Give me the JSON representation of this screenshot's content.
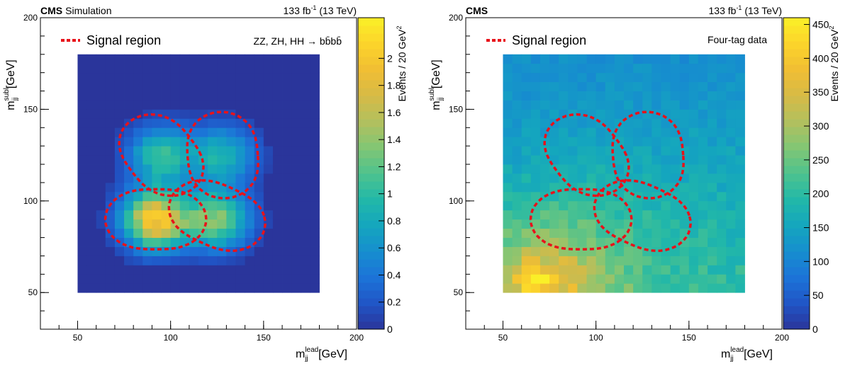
{
  "chart_data": [
    {
      "type": "heatmap",
      "label_left": "CMS",
      "label_left_extra": "Simulation",
      "lumi_label": "133 fb",
      "lumi_sup": "-1",
      "lumi_energy": " (13 TeV)",
      "legend_label": "Signal region",
      "process_label": "ZZ, ZH, HH → bb̄bb̄",
      "xlabel": "m",
      "xlabel_sub": "jj",
      "xlabel_sup": "lead",
      "xlabel_unit": " [GeV]",
      "ylabel": "m",
      "ylabel_sub": "jj",
      "ylabel_sup": "subl",
      "ylabel_unit": " [GeV]",
      "zlabel": "Events / 20 GeV",
      "zlabel_sup": "2",
      "xlim": [
        30,
        200
      ],
      "ylim": [
        30,
        200
      ],
      "zlim": [
        0,
        2.3
      ],
      "x_ticks": [
        "50",
        "100",
        "150",
        "200"
      ],
      "y_ticks": [
        "50",
        "100",
        "150",
        "200"
      ],
      "z_ticks": [
        "0",
        "0.2",
        "0.4",
        "0.6",
        "0.8",
        "1",
        "1.2",
        "1.4",
        "1.6",
        "1.8",
        "2"
      ],
      "bin_range": [
        50,
        180
      ],
      "bin_width": 5,
      "signal_peaks": [
        {
          "x": 92,
          "y": 90,
          "amp": 2.0
        },
        {
          "x": 125,
          "y": 90,
          "amp": 1.35
        },
        {
          "x": 95,
          "y": 125,
          "amp": 1.05
        },
        {
          "x": 128,
          "y": 125,
          "amp": 0.9
        }
      ],
      "signal_regions": [
        {
          "x": 92,
          "y": 90
        },
        {
          "x": 125,
          "y": 92
        },
        {
          "x": 95,
          "y": 125
        },
        {
          "x": 128,
          "y": 125
        }
      ]
    },
    {
      "type": "heatmap",
      "label_left": "CMS",
      "label_left_extra": "",
      "lumi_label": "133 fb",
      "lumi_sup": "-1",
      "lumi_energy": " (13 TeV)",
      "legend_label": "Signal region",
      "process_label": "Four-tag data",
      "xlabel": "m",
      "xlabel_sub": "jj",
      "xlabel_sup": "lead",
      "xlabel_unit": " [GeV]",
      "ylabel": "m",
      "ylabel_sub": "jj",
      "ylabel_sup": "subl",
      "ylabel_unit": " [GeV]",
      "zlabel": "Events / 20 GeV",
      "zlabel_sup": "2",
      "xlim": [
        30,
        200
      ],
      "ylim": [
        30,
        200
      ],
      "zlim": [
        0,
        460
      ],
      "x_ticks": [
        "50",
        "100",
        "150",
        "200"
      ],
      "y_ticks": [
        "50",
        "100",
        "150",
        "200"
      ],
      "z_ticks": [
        "0",
        "50",
        "100",
        "150",
        "200",
        "250",
        "300",
        "350",
        "400",
        "450"
      ],
      "bin_range": [
        50,
        180
      ],
      "bin_width": 5,
      "data_peak": {
        "x": 70,
        "y": 55,
        "value": 440
      },
      "data_floor": 110,
      "signal_regions": [
        {
          "x": 92,
          "y": 90
        },
        {
          "x": 125,
          "y": 92
        },
        {
          "x": 95,
          "y": 125
        },
        {
          "x": 128,
          "y": 125
        }
      ]
    }
  ]
}
